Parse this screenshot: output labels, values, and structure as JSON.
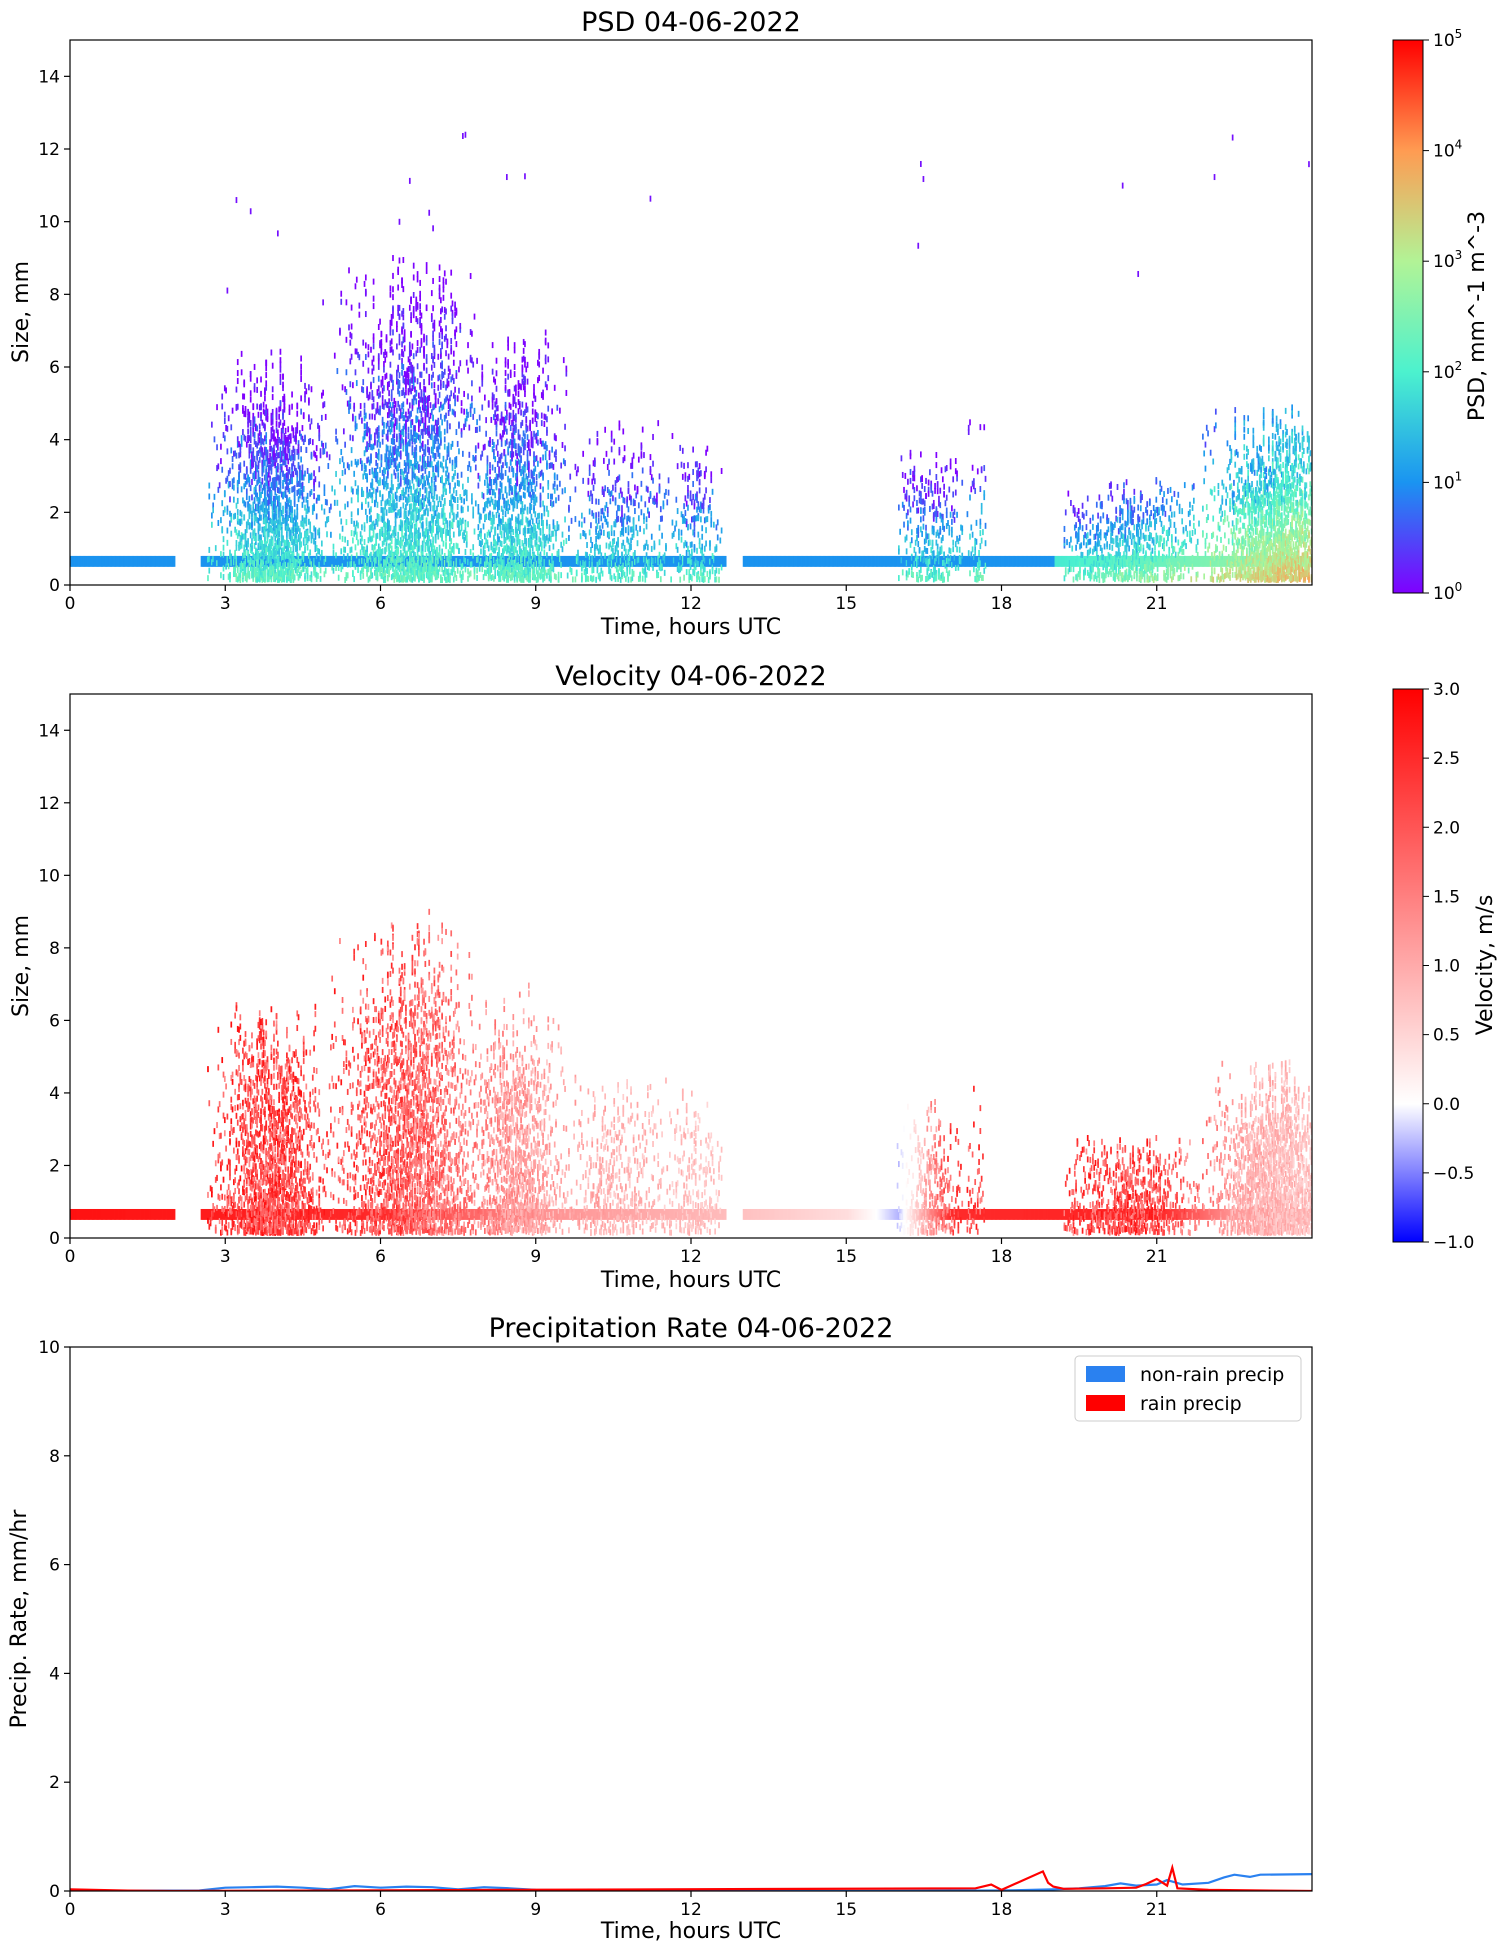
{
  "chart_data": [
    {
      "type": "heatmap",
      "title": "PSD 04-06-2022",
      "xlabel": "Time, hours UTC",
      "ylabel": "Size, mm",
      "xlim": [
        0,
        24
      ],
      "ylim": [
        0,
        15
      ],
      "xticks": [
        0,
        3,
        6,
        9,
        12,
        15,
        18,
        21
      ],
      "yticks": [
        0,
        2,
        4,
        6,
        8,
        10,
        12,
        14
      ],
      "colorbar": {
        "label": "PSD, mm^-1 m^-3",
        "scale": "log",
        "range": [
          1,
          100000
        ],
        "colormap": "rainbow",
        "ticks": [
          {
            "value": 1,
            "base": "10",
            "exp": "0"
          },
          {
            "value": 10,
            "base": "10",
            "exp": "1"
          },
          {
            "value": 100,
            "base": "10",
            "exp": "2"
          },
          {
            "value": 1000,
            "base": "10",
            "exp": "3"
          },
          {
            "value": 10000,
            "base": "10",
            "exp": "4"
          },
          {
            "value": 100000,
            "base": "10",
            "exp": "5"
          }
        ]
      },
      "activity": [
        {
          "center": 3.9,
          "width": 0.8,
          "strength": 1.0,
          "maxsize": 6.5
        },
        {
          "center": 6.6,
          "width": 1.1,
          "strength": 1.0,
          "maxsize": 9.0
        },
        {
          "center": 8.6,
          "width": 0.7,
          "strength": 0.85,
          "maxsize": 7.0
        },
        {
          "center": 10.6,
          "width": 0.9,
          "strength": 0.35,
          "maxsize": 4.5
        },
        {
          "center": 12.1,
          "width": 0.4,
          "strength": 0.35,
          "maxsize": 4.2
        },
        {
          "center": 16.6,
          "width": 0.5,
          "strength": 0.4,
          "maxsize": 4.0
        },
        {
          "center": 17.5,
          "width": 0.2,
          "strength": 0.2,
          "maxsize": 5.0
        },
        {
          "center": 20.5,
          "width": 1.0,
          "strength": 0.45,
          "maxsize": 3.0
        },
        {
          "center": 23.3,
          "width": 0.9,
          "strength": 1.0,
          "maxsize": 5.0
        }
      ],
      "quiet_periods_hours": [
        [
          0,
          2.0
        ],
        [
          13.0,
          16.0
        ],
        [
          17.2,
          19.0
        ]
      ],
      "baseline_size_mm": [
        0.5,
        0.8
      ]
    },
    {
      "type": "heatmap",
      "title": "Velocity 04-06-2022",
      "xlabel": "Time, hours UTC",
      "ylabel": "Size, mm",
      "xlim": [
        0,
        24
      ],
      "ylim": [
        0,
        15
      ],
      "xticks": [
        0,
        3,
        6,
        9,
        12,
        15,
        18,
        21
      ],
      "yticks": [
        0,
        2,
        4,
        6,
        8,
        10,
        12,
        14
      ],
      "colorbar": {
        "label": "Velocity, m/s",
        "scale": "two-slope",
        "range": [
          -1.0,
          3.0
        ],
        "center": 0.0,
        "colormap": "bwr",
        "ticks": [
          "3.0",
          "2.5",
          "2.0",
          "1.5",
          "1.0",
          "0.5",
          "0.0",
          "−0.5",
          "−1.0"
        ]
      },
      "velocity_trend_m_s": [
        {
          "hour": 0,
          "value": 2.8
        },
        {
          "hour": 6,
          "value": 2.5
        },
        {
          "hour": 9,
          "value": 1.3
        },
        {
          "hour": 12,
          "value": 0.9
        },
        {
          "hour": 15,
          "value": 0.4
        },
        {
          "hour": 16,
          "value": -0.3
        },
        {
          "hour": 17,
          "value": 2.5
        },
        {
          "hour": 21,
          "value": 2.6
        },
        {
          "hour": 22.5,
          "value": 1.2
        },
        {
          "hour": 24,
          "value": 0.9
        }
      ]
    },
    {
      "type": "line",
      "title": "Precipitation Rate 04-06-2022",
      "xlabel": "Time, hours UTC",
      "ylabel": "Precip. Rate, mm/hr",
      "xlim": [
        0,
        24
      ],
      "ylim": [
        0,
        10
      ],
      "xticks": [
        0,
        3,
        6,
        9,
        12,
        15,
        18,
        21
      ],
      "yticks": [
        0,
        2,
        4,
        6,
        8,
        10
      ],
      "legend_position": "top-right",
      "series": [
        {
          "name": "non-rain precip",
          "color": "#2a81f0",
          "points": [
            [
              0,
              0.0
            ],
            [
              2.5,
              0.01
            ],
            [
              3.0,
              0.06
            ],
            [
              3.5,
              0.07
            ],
            [
              4.0,
              0.08
            ],
            [
              4.5,
              0.06
            ],
            [
              5.0,
              0.03
            ],
            [
              5.5,
              0.09
            ],
            [
              6.0,
              0.06
            ],
            [
              6.5,
              0.08
            ],
            [
              7.0,
              0.07
            ],
            [
              7.5,
              0.03
            ],
            [
              8.0,
              0.07
            ],
            [
              8.5,
              0.05
            ],
            [
              9.0,
              0.02
            ],
            [
              10.0,
              0.01
            ],
            [
              12.0,
              0.01
            ],
            [
              15.0,
              0.0
            ],
            [
              18.0,
              0.01
            ],
            [
              19.0,
              0.03
            ],
            [
              19.5,
              0.05
            ],
            [
              20.0,
              0.09
            ],
            [
              20.3,
              0.14
            ],
            [
              20.6,
              0.1
            ],
            [
              21.0,
              0.12
            ],
            [
              21.2,
              0.2
            ],
            [
              21.5,
              0.12
            ],
            [
              22.0,
              0.15
            ],
            [
              22.3,
              0.25
            ],
            [
              22.5,
              0.3
            ],
            [
              22.8,
              0.26
            ],
            [
              23.0,
              0.3
            ],
            [
              24.0,
              0.31
            ]
          ]
        },
        {
          "name": "rain precip",
          "color": "#ff0000",
          "points": [
            [
              0,
              0.03
            ],
            [
              1.0,
              0.01
            ],
            [
              2.0,
              0.0
            ],
            [
              17.5,
              0.05
            ],
            [
              17.8,
              0.12
            ],
            [
              18.0,
              0.02
            ],
            [
              18.8,
              0.36
            ],
            [
              18.9,
              0.15
            ],
            [
              19.0,
              0.08
            ],
            [
              19.2,
              0.04
            ],
            [
              20.0,
              0.05
            ],
            [
              20.6,
              0.06
            ],
            [
              20.8,
              0.13
            ],
            [
              21.0,
              0.22
            ],
            [
              21.2,
              0.1
            ],
            [
              21.3,
              0.43
            ],
            [
              21.4,
              0.05
            ],
            [
              22.0,
              0.02
            ],
            [
              24.0,
              0.0
            ]
          ]
        }
      ]
    }
  ]
}
